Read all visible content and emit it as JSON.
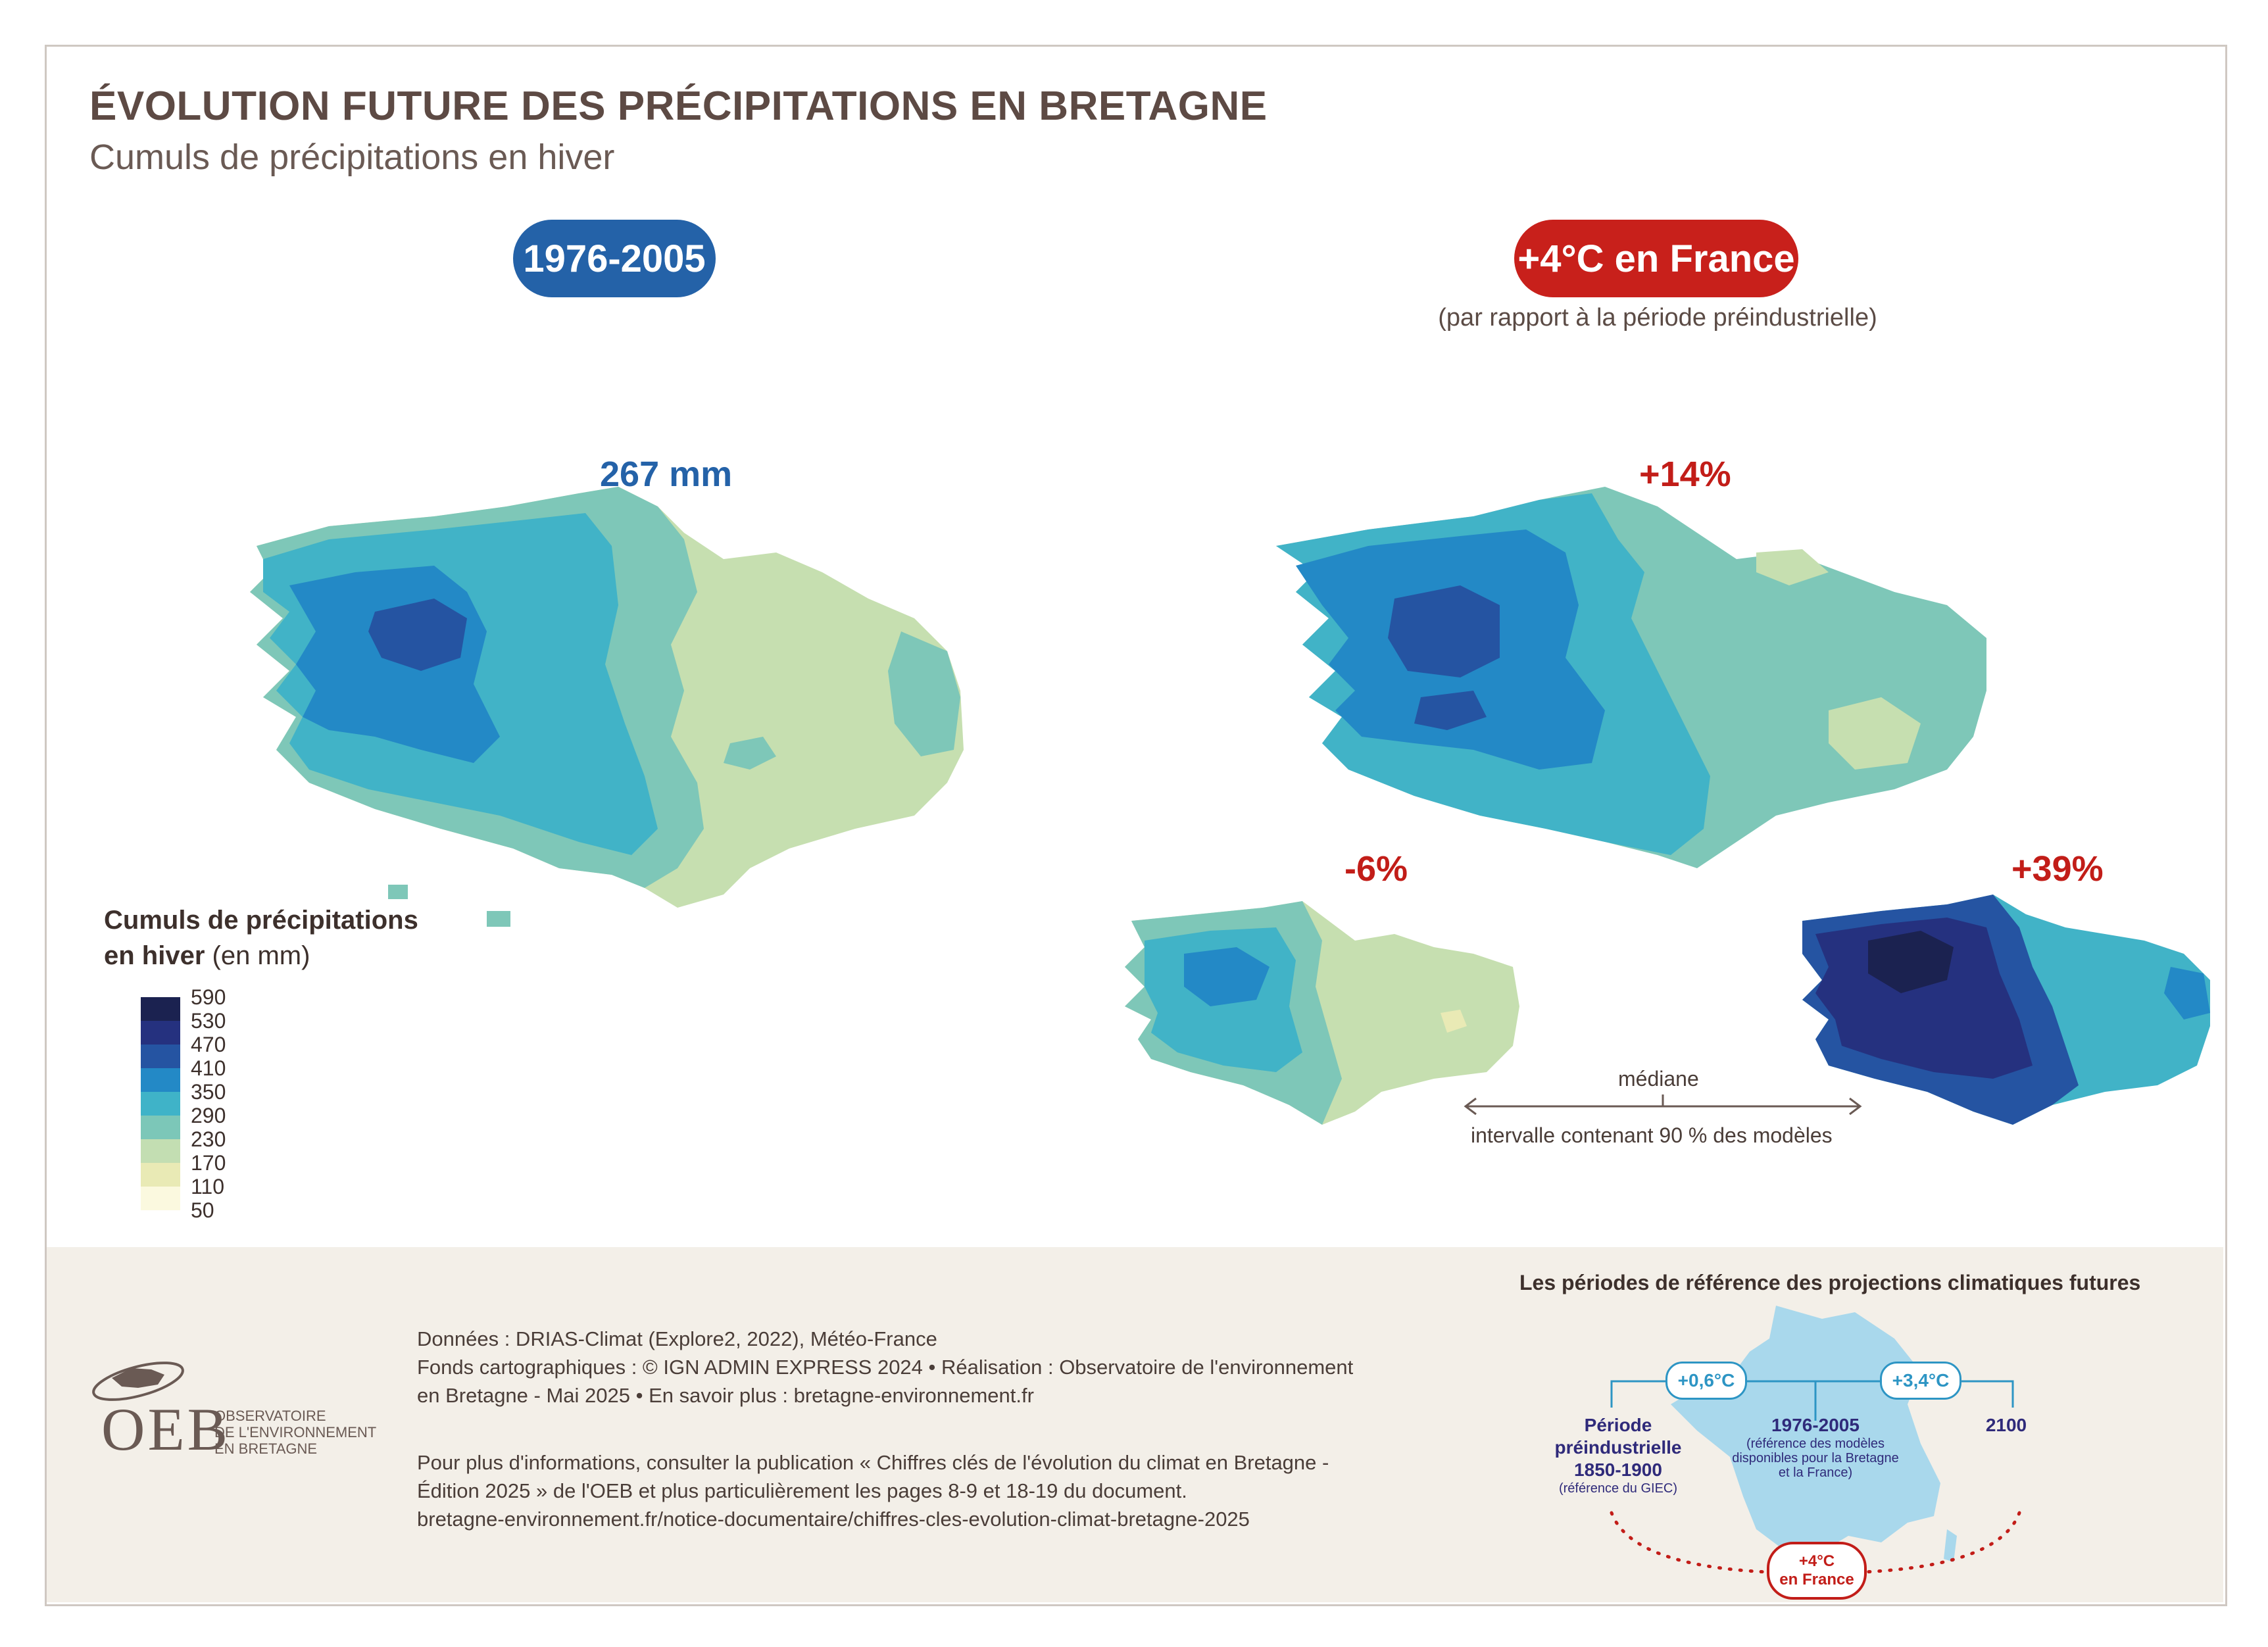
{
  "header": {
    "title": "ÉVOLUTION FUTURE DES PRÉCIPITATIONS EN BRETAGNE",
    "subtitle": "Cumuls de précipitations en hiver"
  },
  "periods": {
    "reference_label": "1976-2005",
    "future_label": "+4°C en France",
    "future_note": "(par rapport à la période préindustrielle)"
  },
  "maps": {
    "reference_value": "267 mm",
    "median_value": "+14%",
    "low_value": "-6%",
    "high_value": "+39%"
  },
  "annotations": {
    "median": "médiane",
    "interval": "intervalle contenant 90 % des modèles"
  },
  "legend": {
    "title_bold_1": "Cumuls de précipitations",
    "title_bold_2": "en hiver",
    "title_unit": "(en mm)",
    "classes": [
      {
        "label": "590",
        "color": "#1b2250"
      },
      {
        "label": "530",
        "color": "#25317f"
      },
      {
        "label": "470",
        "color": "#2554a2"
      },
      {
        "label": "410",
        "color": "#2389c6"
      },
      {
        "label": "350",
        "color": "#3fb3c8"
      },
      {
        "label": "290",
        "color": "#7cc7b8"
      },
      {
        "label": "230",
        "color": "#c3deb2"
      },
      {
        "label": "170",
        "color": "#e9eab5"
      },
      {
        "label": "110",
        "color": "#fbf9df"
      },
      {
        "label": "50",
        "color": ""
      }
    ]
  },
  "credits": {
    "line1": "Données : DRIAS-Climat (Explore2, 2022), Météo-France",
    "line2": "Fonds cartographiques : © IGN ADMIN EXPRESS 2024 • Réalisation : Observatoire de l'environnement",
    "line3": "en Bretagne - Mai 2025  • En savoir plus : bretagne-environnement.fr",
    "info1": "Pour plus d'informations, consulter la publication « Chiffres clés de l'évolution du climat en Bretagne -",
    "info2": "Édition 2025 » de l'OEB et plus particulièrement les pages 8-9 et 18-19 du document.",
    "info3": "bretagne-environnement.fr/notice-documentaire/chiffres-cles-evolution-climat-bretagne-2025"
  },
  "logo": {
    "acronym": "OEB",
    "line1": "OBSERVATOIRE",
    "line2": "DE L'ENVIRONNEMENT",
    "line3": "EN BRETAGNE"
  },
  "reference_periods": {
    "title": "Les périodes de référence des projections climatiques futures",
    "badge1": "+0,6°C",
    "badge2": "+3,4°C",
    "pre_title1": "Période",
    "pre_title2": "préindustrielle",
    "pre_title3": "1850-1900",
    "pre_note": "(référence du GIEC)",
    "ref_title": "1976-2005",
    "ref_note1": "(référence des modèles",
    "ref_note2": "disponibles pour la Bretagne",
    "ref_note3": "et la France)",
    "end_year": "2100",
    "warming1": "+4°C",
    "warming2": "en France"
  },
  "colors": {
    "title_brown": "#5d4a44",
    "reference_blue": "#2462a8",
    "future_red": "#c8201b",
    "footer_bg": "#f3efe8",
    "france_blue": "#a9d8ec"
  }
}
